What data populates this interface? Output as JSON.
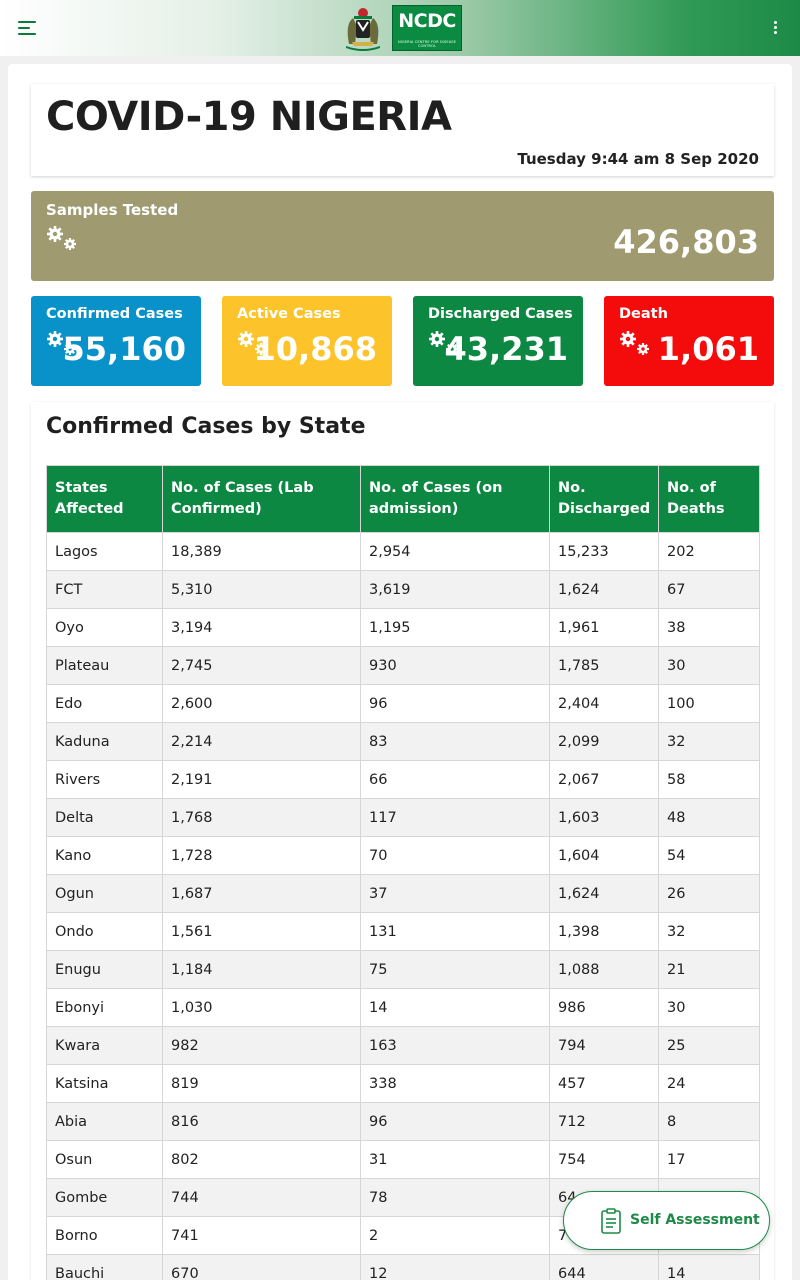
{
  "header": {
    "menu_icon": "hamburger-menu-icon",
    "logo_text": "NCDC",
    "logo_subtext": "NIGERIA CENTRE FOR DISEASE CONTROL",
    "more_icon": "more-vertical-icon"
  },
  "title": "COVID-19 NIGERIA",
  "timestamp": "Tuesday 9:44 am 8 Sep 2020",
  "samples": {
    "label": "Samples Tested",
    "value": "426,803",
    "icon": "gears-icon",
    "color": "#9f9a70"
  },
  "stats": [
    {
      "label": "Confirmed Cases",
      "value": "55,160",
      "color": "#0892c9"
    },
    {
      "label": "Active Cases",
      "value": "10,868",
      "color": "#fcc42a"
    },
    {
      "label": "Discharged Cases",
      "value": "43,231",
      "color": "#0c8843"
    },
    {
      "label": "Death",
      "value": "1,061",
      "color": "#f40b0b"
    }
  ],
  "table": {
    "title": "Confirmed Cases by State",
    "headers": [
      "States Affected",
      "No. of Cases (Lab Confirmed)",
      "No. of Cases (on admission)",
      "No. Discharged",
      "No. of Deaths"
    ],
    "rows": [
      [
        "Lagos",
        "18,389",
        "2,954",
        "15,233",
        "202"
      ],
      [
        "FCT",
        "5,310",
        "3,619",
        "1,624",
        "67"
      ],
      [
        "Oyo",
        "3,194",
        "1,195",
        "1,961",
        "38"
      ],
      [
        "Plateau",
        "2,745",
        "930",
        "1,785",
        "30"
      ],
      [
        "Edo",
        "2,600",
        "96",
        "2,404",
        "100"
      ],
      [
        "Kaduna",
        "2,214",
        "83",
        "2,099",
        "32"
      ],
      [
        "Rivers",
        "2,191",
        "66",
        "2,067",
        "58"
      ],
      [
        "Delta",
        "1,768",
        "117",
        "1,603",
        "48"
      ],
      [
        "Kano",
        "1,728",
        "70",
        "1,604",
        "54"
      ],
      [
        "Ogun",
        "1,687",
        "37",
        "1,624",
        "26"
      ],
      [
        "Ondo",
        "1,561",
        "131",
        "1,398",
        "32"
      ],
      [
        "Enugu",
        "1,184",
        "75",
        "1,088",
        "21"
      ],
      [
        "Ebonyi",
        "1,030",
        "14",
        "986",
        "30"
      ],
      [
        "Kwara",
        "982",
        "163",
        "794",
        "25"
      ],
      [
        "Katsina",
        "819",
        "338",
        "457",
        "24"
      ],
      [
        "Abia",
        "816",
        "96",
        "712",
        "8"
      ],
      [
        "Osun",
        "802",
        "31",
        "754",
        "17"
      ],
      [
        "Gombe",
        "744",
        "78",
        "64",
        ""
      ],
      [
        "Borno",
        "741",
        "2",
        "70",
        ""
      ],
      [
        "Bauchi",
        "670",
        "12",
        "644",
        "14"
      ]
    ]
  },
  "fab": {
    "label": "Self Assessment",
    "icon": "clipboard-icon"
  }
}
